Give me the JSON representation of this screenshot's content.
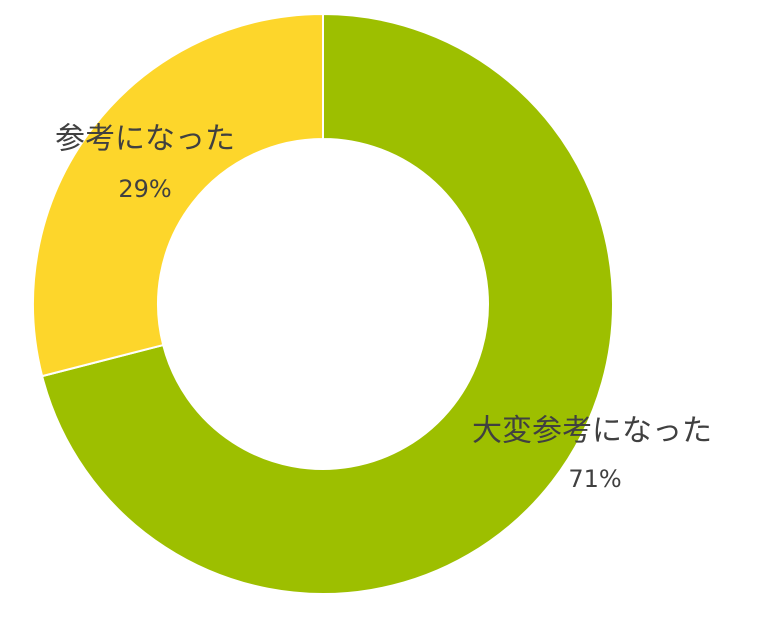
{
  "chart_data": {
    "type": "donut",
    "categories": [
      "大変参考になった",
      "参考になった"
    ],
    "values": [
      71,
      29
    ],
    "value_labels": [
      "71%",
      "29%"
    ],
    "colors": [
      "#9dbf00",
      "#fdd62b"
    ]
  }
}
